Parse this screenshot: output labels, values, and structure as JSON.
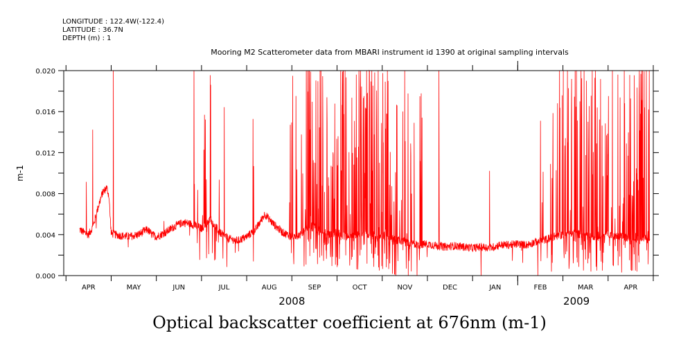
{
  "header": {
    "longitude": "LONGITUDE : 122.4W(-122.4)",
    "latitude": "LATITUDE : 36.7N",
    "depth": "DEPTH (m) : 1",
    "subtitle": "Mooring M2 Scatterometer data from MBARI instrument id 1390 at original sampling intervals"
  },
  "footer_title": "Optical backscatter coefficient at 676nm (m-1)",
  "colors": {
    "series": "#ff0000",
    "axis": "#000000",
    "background": "#ffffff"
  },
  "chart_data": {
    "type": "line",
    "title": "Mooring M2 Scatterometer data from MBARI instrument id 1390 at original sampling intervals",
    "xlabel": "",
    "ylabel": "m-1",
    "ylim": [
      0.0,
      0.02
    ],
    "yticks": [
      "0.000",
      "0.004",
      "0.008",
      "0.012",
      "0.016",
      "0.020"
    ],
    "grid": false,
    "xticks": [
      {
        "label": "APR",
        "pos": 3.5
      },
      {
        "label": "MAY",
        "pos": 4.5
      },
      {
        "label": "JUN",
        "pos": 5.5
      },
      {
        "label": "JUL",
        "pos": 6.5
      },
      {
        "label": "AUG",
        "pos": 7.5
      },
      {
        "label": "SEP",
        "pos": 8.5
      },
      {
        "label": "OCT",
        "pos": 9.5
      },
      {
        "label": "NOV",
        "pos": 10.5
      },
      {
        "label": "DEC",
        "pos": 11.5
      },
      {
        "label": "JAN",
        "pos": 12.5
      },
      {
        "label": "FEB",
        "pos": 13.5
      },
      {
        "label": "MAR",
        "pos": 14.5
      },
      {
        "label": "APR",
        "pos": 15.5
      }
    ],
    "years": [
      {
        "label": "2008",
        "pos": 8.0
      },
      {
        "label": "2009",
        "pos": 14.3
      }
    ],
    "xlim": [
      2.95,
      16.0
    ],
    "series": [
      {
        "values_by_month_pos": [
          [
            3.3,
            0.0045
          ],
          [
            3.4,
            0.0042
          ],
          [
            3.5,
            0.004
          ],
          [
            3.6,
            0.0048
          ],
          [
            3.7,
            0.0065
          ],
          [
            3.8,
            0.008
          ],
          [
            3.9,
            0.0086
          ],
          [
            3.95,
            0.0078
          ],
          [
            4.0,
            0.0041
          ],
          [
            4.2,
            0.0039
          ],
          [
            4.4,
            0.0038
          ],
          [
            4.6,
            0.004
          ],
          [
            4.8,
            0.0045
          ],
          [
            4.9,
            0.004
          ],
          [
            5.0,
            0.0038
          ],
          [
            5.2,
            0.0042
          ],
          [
            5.4,
            0.0048
          ],
          [
            5.6,
            0.0052
          ],
          [
            5.8,
            0.005
          ],
          [
            6.0,
            0.0046
          ],
          [
            6.2,
            0.0055
          ],
          [
            6.4,
            0.0042
          ],
          [
            6.6,
            0.0036
          ],
          [
            6.8,
            0.0034
          ],
          [
            7.0,
            0.0038
          ],
          [
            7.2,
            0.0045
          ],
          [
            7.4,
            0.006
          ],
          [
            7.6,
            0.005
          ],
          [
            7.8,
            0.0042
          ],
          [
            8.0,
            0.0038
          ],
          [
            8.2,
            0.004
          ],
          [
            8.4,
            0.005
          ],
          [
            8.6,
            0.0045
          ],
          [
            8.8,
            0.004
          ],
          [
            9.0,
            0.0042
          ],
          [
            9.2,
            0.0038
          ],
          [
            9.4,
            0.004
          ],
          [
            9.6,
            0.0042
          ],
          [
            9.8,
            0.004
          ],
          [
            10.0,
            0.0038
          ],
          [
            10.2,
            0.0036
          ],
          [
            10.4,
            0.0034
          ],
          [
            10.6,
            0.0032
          ],
          [
            10.8,
            0.003
          ],
          [
            11.0,
            0.0031
          ],
          [
            11.2,
            0.0029
          ],
          [
            11.4,
            0.0028
          ],
          [
            11.6,
            0.0029
          ],
          [
            11.8,
            0.0028
          ],
          [
            12.0,
            0.0027
          ],
          [
            12.2,
            0.0028
          ],
          [
            12.4,
            0.0027
          ],
          [
            12.6,
            0.003
          ],
          [
            12.8,
            0.003
          ],
          [
            13.0,
            0.0031
          ],
          [
            13.2,
            0.003
          ],
          [
            13.4,
            0.0033
          ],
          [
            13.6,
            0.0035
          ],
          [
            13.8,
            0.0038
          ],
          [
            14.0,
            0.004
          ],
          [
            14.2,
            0.0042
          ],
          [
            14.4,
            0.004
          ],
          [
            14.6,
            0.0038
          ],
          [
            14.8,
            0.0039
          ],
          [
            15.0,
            0.004
          ],
          [
            15.2,
            0.0038
          ],
          [
            15.4,
            0.0037
          ],
          [
            15.6,
            0.0038
          ],
          [
            15.8,
            0.0036
          ],
          [
            15.92,
            0.0035
          ]
        ]
      }
    ]
  }
}
